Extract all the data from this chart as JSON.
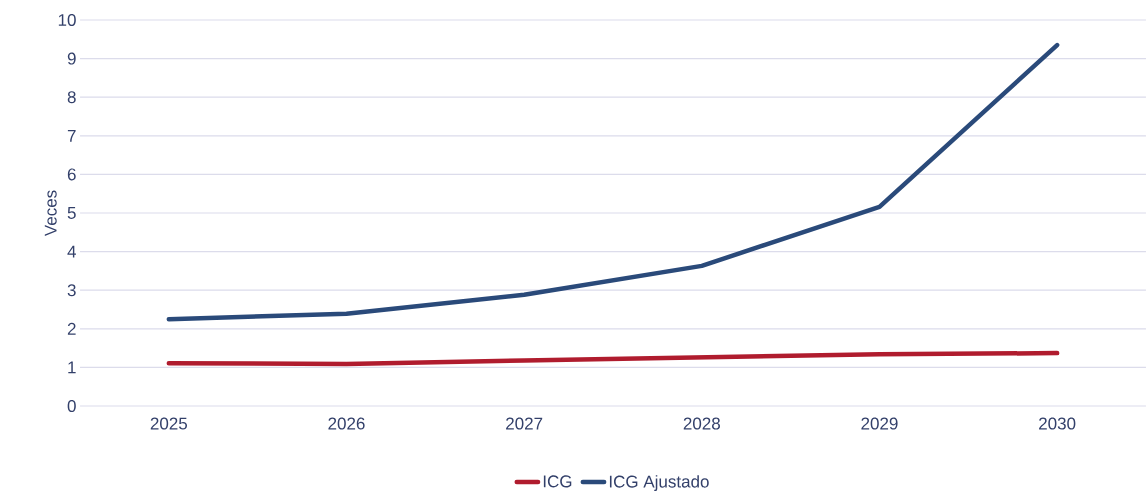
{
  "chart_data": {
    "type": "line",
    "ylabel": "Veces",
    "categories": [
      "2025",
      "2026",
      "2027",
      "2028",
      "2029",
      "2030"
    ],
    "series": [
      {
        "name": "ICG",
        "color": "#b01c2e",
        "values": [
          1.11,
          1.09,
          1.18,
          1.26,
          1.34,
          1.37
        ]
      },
      {
        "name": "ICG Ajustado",
        "color": "#2a4a7a",
        "values": [
          2.25,
          2.39,
          2.88,
          3.63,
          5.16,
          9.35
        ]
      }
    ],
    "ylim": [
      0,
      10
    ],
    "yticks": [
      0,
      1,
      2,
      3,
      4,
      5,
      6,
      7,
      8,
      9,
      10
    ],
    "grid": "y",
    "legend": "bottom",
    "marker": "none",
    "line_style": "solid"
  }
}
